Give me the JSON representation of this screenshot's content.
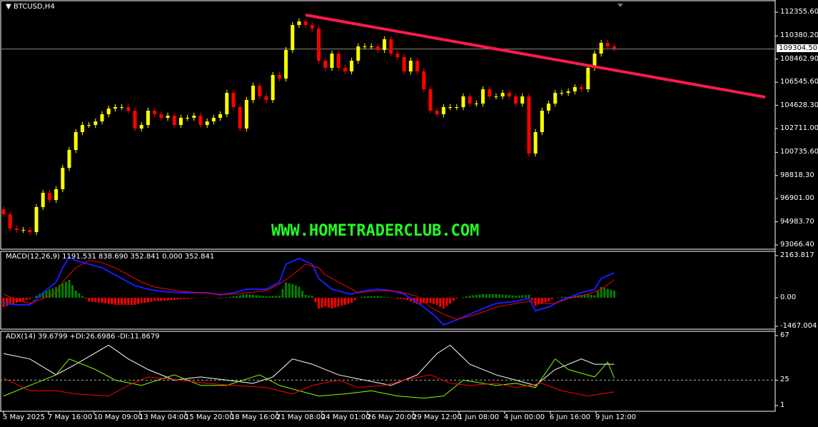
{
  "chart_data": [
    {
      "type": "candlestick",
      "title": "BTCUSD,H4",
      "symbol": "BTCUSD",
      "timeframe": "H4",
      "y_ticks": [
        "112355.60",
        "110380.20",
        "108462.90",
        "106545.60",
        "104628.30",
        "102711.00",
        "100735.60",
        "98818.30",
        "96901.00",
        "94983.70",
        "93066.40"
      ],
      "ylim": [
        93066.4,
        112355.6
      ],
      "current_price": "109304.50",
      "closes": [
        95610,
        94427,
        94308,
        94308,
        94131,
        96202,
        97385,
        96793,
        97681,
        99456,
        100935,
        102415,
        103006,
        103006,
        103302,
        103894,
        104367,
        104485,
        104485,
        104190,
        102710,
        103006,
        104190,
        103894,
        103598,
        103775,
        103006,
        103598,
        103598,
        103775,
        103006,
        103302,
        103598,
        103894,
        105669,
        104485,
        102710,
        105077,
        106261,
        105373,
        105077,
        107148,
        106852,
        109219,
        111290,
        111586,
        111290,
        110994,
        108332,
        107740,
        108923,
        107740,
        107444,
        108332,
        109515,
        109515,
        109515,
        109219,
        110107,
        108923,
        108628,
        107444,
        108332,
        107444,
        105965,
        104190,
        103894,
        104485,
        104485,
        104485,
        105373,
        104781,
        104781,
        105965,
        105373,
        105373,
        105669,
        105373,
        104781,
        105373,
        100639,
        102415,
        104190,
        104781,
        105669,
        105669,
        105787,
        106142,
        105965,
        107740,
        108923,
        109811,
        109515,
        109337
      ],
      "trendline": {
        "color": "#ff1a4a",
        "start": {
          "bar": 46,
          "price": 112119
        },
        "end": {
          "bar": 116,
          "price": 105314
        }
      },
      "watermark": "WWW.HOMETRADERCLUB.COM",
      "x_ticks": [
        "5 May 2025",
        "7 May 16:00",
        "10 May 09:00",
        "13 May 04:00",
        "15 May 20:00",
        "18 May 16:00",
        "21 May 08:00",
        "24 May 01:00",
        "26 May 20:00",
        "29 May 12:00",
        "1 Jun 08:00",
        "4 Jun 00:00",
        "6 Jun 16:00",
        "9 Jun 12:00"
      ],
      "colors": {
        "bull": "#ffff00",
        "bear": "#ff0000"
      }
    },
    {
      "type": "line",
      "title": "MACD(12,26,9) 1191.531 838.690 352.841 0.000 352.841",
      "y_ticks": [
        "2163.817",
        "0.00",
        "-1467.004"
      ],
      "ylim": [
        -1467.004,
        2163.817
      ],
      "series": [
        {
          "color": "#1a1aff",
          "points": [
            [
              0,
              -294
            ],
            [
              2,
              -367
            ],
            [
              4,
              -367
            ],
            [
              6,
              257
            ],
            [
              8,
              807
            ],
            [
              9,
              1541
            ],
            [
              10,
              2092
            ],
            [
              11,
              1908
            ],
            [
              13,
              1725
            ],
            [
              15,
              1541
            ],
            [
              17,
              1174
            ],
            [
              18,
              991
            ],
            [
              20,
              624
            ],
            [
              22,
              440
            ],
            [
              24,
              330
            ],
            [
              27,
              257
            ],
            [
              29,
              257
            ],
            [
              31,
              257
            ],
            [
              33,
              147
            ],
            [
              35,
              257
            ],
            [
              37,
              440
            ],
            [
              40,
              440
            ],
            [
              42,
              807
            ],
            [
              43,
              1725
            ],
            [
              45,
              2018
            ],
            [
              47,
              1725
            ],
            [
              48,
              991
            ],
            [
              50,
              440
            ],
            [
              52,
              257
            ],
            [
              53,
              183
            ],
            [
              55,
              367
            ],
            [
              57,
              440
            ],
            [
              59,
              367
            ],
            [
              61,
              183
            ],
            [
              64,
              -477
            ],
            [
              66,
              -1028
            ],
            [
              67,
              -1395
            ],
            [
              69,
              -1138
            ],
            [
              71,
              -844
            ],
            [
              73,
              -550
            ],
            [
              75,
              -294
            ],
            [
              78,
              -184
            ],
            [
              80,
              -37
            ],
            [
              81,
              -661
            ],
            [
              83,
              -477
            ],
            [
              85,
              -110
            ],
            [
              88,
              257
            ],
            [
              90,
              440
            ],
            [
              91,
              991
            ],
            [
              93,
              1284
            ]
          ]
        },
        {
          "color": "#ff0000",
          "points": [
            [
              0,
              183
            ],
            [
              2,
              -110
            ],
            [
              4,
              -294
            ],
            [
              6,
              -37
            ],
            [
              8,
              257
            ],
            [
              9,
              807
            ],
            [
              11,
              1541
            ],
            [
              13,
              1908
            ],
            [
              15,
              1804
            ],
            [
              17,
              1541
            ],
            [
              19,
              1174
            ],
            [
              21,
              807
            ],
            [
              23,
              550
            ],
            [
              27,
              330
            ],
            [
              30,
              257
            ],
            [
              33,
              183
            ],
            [
              35,
              183
            ],
            [
              37,
              257
            ],
            [
              40,
              367
            ],
            [
              42,
              697
            ],
            [
              44,
              1174
            ],
            [
              46,
              1725
            ],
            [
              48,
              1541
            ],
            [
              49,
              1174
            ],
            [
              52,
              624
            ],
            [
              54,
              257
            ],
            [
              56,
              330
            ],
            [
              58,
              367
            ],
            [
              60,
              330
            ],
            [
              63,
              73
            ],
            [
              65,
              -477
            ],
            [
              67,
              -844
            ],
            [
              69,
              -1101
            ],
            [
              71,
              -954
            ],
            [
              73,
              -734
            ],
            [
              75,
              -477
            ],
            [
              78,
              -294
            ],
            [
              80,
              -184
            ],
            [
              82,
              -294
            ],
            [
              84,
              -294
            ],
            [
              86,
              -37
            ],
            [
              89,
              183
            ],
            [
              91,
              440
            ],
            [
              93,
              917
            ]
          ]
        }
      ],
      "histogram_colors": {
        "up": "#008000",
        "down": "#ff0000"
      }
    },
    {
      "type": "line",
      "title": "ADX(14) 39.6799 +DI:26.6986 -DI:11.8679",
      "y_ticks": [
        "67",
        "25",
        "1"
      ],
      "ylim": [
        1,
        67
      ],
      "level": 25,
      "series": [
        {
          "name": "ADX",
          "color": "#ffffff",
          "points": [
            [
              0,
              50
            ],
            [
              4,
              45
            ],
            [
              8,
              30
            ],
            [
              11,
              40
            ],
            [
              16,
              58
            ],
            [
              19,
              45
            ],
            [
              22,
              35
            ],
            [
              26,
              25
            ],
            [
              30,
              28
            ],
            [
              34,
              25
            ],
            [
              38,
              22
            ],
            [
              41,
              28
            ],
            [
              44,
              45
            ],
            [
              47,
              40
            ],
            [
              51,
              30
            ],
            [
              55,
              25
            ],
            [
              59,
              20
            ],
            [
              63,
              30
            ],
            [
              66,
              50
            ],
            [
              68,
              58
            ],
            [
              71,
              40
            ],
            [
              75,
              30
            ],
            [
              78,
              25
            ],
            [
              81,
              20
            ],
            [
              84,
              35
            ],
            [
              88,
              45
            ],
            [
              90,
              40
            ],
            [
              92,
              40
            ],
            [
              93,
              40
            ]
          ]
        },
        {
          "name": "+DI",
          "color": "#80ff00",
          "points": [
            [
              0,
              10
            ],
            [
              4,
              20
            ],
            [
              8,
              30
            ],
            [
              10,
              45
            ],
            [
              14,
              35
            ],
            [
              17,
              25
            ],
            [
              21,
              20
            ],
            [
              26,
              30
            ],
            [
              30,
              20
            ],
            [
              34,
              20
            ],
            [
              39,
              30
            ],
            [
              42,
              20
            ],
            [
              45,
              15
            ],
            [
              48,
              10
            ],
            [
              52,
              12
            ],
            [
              56,
              15
            ],
            [
              60,
              10
            ],
            [
              64,
              8
            ],
            [
              67,
              10
            ],
            [
              70,
              25
            ],
            [
              75,
              20
            ],
            [
              78,
              22
            ],
            [
              81,
              18
            ],
            [
              84,
              45
            ],
            [
              86,
              35
            ],
            [
              90,
              28
            ],
            [
              92,
              42
            ],
            [
              93,
              27
            ]
          ]
        },
        {
          "name": "-DI",
          "color": "#ff0000",
          "points": [
            [
              0,
              27
            ],
            [
              4,
              15
            ],
            [
              8,
              15
            ],
            [
              11,
              12
            ],
            [
              16,
              10
            ],
            [
              19,
              20
            ],
            [
              22,
              28
            ],
            [
              27,
              25
            ],
            [
              31,
              22
            ],
            [
              35,
              20
            ],
            [
              40,
              18
            ],
            [
              44,
              12
            ],
            [
              47,
              20
            ],
            [
              51,
              25
            ],
            [
              54,
              18
            ],
            [
              58,
              20
            ],
            [
              61,
              25
            ],
            [
              65,
              30
            ],
            [
              68,
              22
            ],
            [
              71,
              20
            ],
            [
              75,
              22
            ],
            [
              78,
              18
            ],
            [
              82,
              22
            ],
            [
              85,
              15
            ],
            [
              89,
              10
            ],
            [
              91,
              12
            ],
            [
              93,
              14
            ]
          ]
        }
      ]
    }
  ]
}
